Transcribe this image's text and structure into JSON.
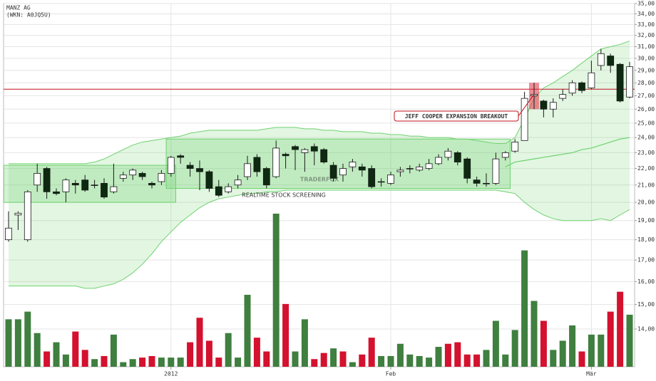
{
  "chart_data": {
    "type": "candlestick",
    "title": "MANZ AG",
    "subtitle": "(WKN: A0JQ5U)",
    "watermark": {
      "title": "TRADERFOX",
      "subtitle": "REALTIME STOCK SCREENING"
    },
    "log_scale": true,
    "grid": true,
    "categories": [
      null,
      null,
      null,
      null,
      null,
      null,
      null,
      null,
      null,
      null,
      null,
      null,
      null,
      null,
      null,
      null,
      null,
      "2012",
      null,
      null,
      null,
      null,
      null,
      null,
      null,
      null,
      null,
      null,
      null,
      null,
      null,
      null,
      null,
      null,
      null,
      null,
      null,
      null,
      null,
      null,
      "Feb",
      null,
      null,
      null,
      null,
      null,
      null,
      null,
      null,
      null,
      null,
      null,
      null,
      null,
      null,
      null,
      null,
      null,
      null,
      null,
      null,
      "Mär",
      null,
      null,
      null,
      null
    ],
    "open": [
      18.0,
      19.3,
      18.0,
      21.0,
      22.0,
      20.6,
      20.6,
      21.1,
      21.3,
      21.0,
      21.1,
      20.6,
      21.4,
      21.6,
      21.7,
      21.1,
      21.2,
      21.7,
      22.8,
      22.2,
      22.0,
      21.8,
      20.9,
      20.6,
      21.0,
      21.5,
      22.7,
      22.0,
      21.5,
      22.9,
      23.4,
      23.0,
      23.4,
      23.2,
      22.2,
      21.6,
      22.1,
      22.1,
      22.0,
      21.2,
      21.1,
      21.8,
      22.0,
      21.9,
      22.0,
      22.3,
      22.7,
      23.0,
      22.6,
      21.3,
      21.1,
      21.1,
      22.7,
      23.1,
      23.8,
      27.0,
      26.6,
      26.0,
      26.8,
      27.2,
      28.0,
      27.6,
      29.4,
      30.2,
      29.5,
      26.9
    ],
    "high": [
      19.5,
      19.5,
      20.7,
      22.3,
      22.1,
      20.8,
      21.4,
      21.3,
      21.6,
      21.3,
      21.4,
      22.3,
      21.8,
      22.0,
      21.8,
      21.2,
      21.9,
      22.8,
      22.9,
      22.4,
      22.5,
      21.9,
      21.3,
      21.1,
      21.6,
      22.8,
      22.9,
      22.1,
      23.8,
      23.0,
      23.5,
      23.3,
      23.6,
      23.3,
      22.4,
      22.3,
      22.6,
      22.3,
      22.2,
      21.4,
      21.8,
      22.1,
      22.2,
      22.3,
      22.6,
      22.9,
      23.3,
      23.1,
      22.7,
      21.5,
      21.7,
      23.0,
      23.1,
      23.9,
      27.3,
      28.0,
      26.7,
      26.8,
      27.5,
      28.2,
      28.1,
      29.8,
      30.8,
      30.4,
      29.6,
      29.7
    ],
    "low": [
      17.9,
      18.5,
      17.9,
      20.6,
      20.2,
      20.4,
      20.0,
      20.5,
      20.6,
      20.8,
      20.2,
      20.5,
      21.2,
      21.3,
      21.3,
      20.8,
      21.0,
      21.5,
      22.3,
      21.5,
      20.7,
      20.6,
      20.3,
      20.5,
      20.8,
      21.3,
      21.5,
      20.8,
      21.4,
      22.0,
      21.9,
      21.8,
      22.2,
      22.3,
      21.2,
      21.2,
      21.8,
      21.5,
      20.8,
      20.9,
      21.0,
      21.5,
      21.7,
      21.8,
      21.9,
      22.2,
      22.5,
      22.2,
      21.1,
      20.9,
      20.9,
      21.0,
      22.5,
      23.0,
      23.8,
      26.0,
      25.4,
      25.4,
      26.6,
      27.0,
      27.2,
      27.5,
      29.0,
      28.8,
      26.5,
      26.8
    ],
    "close": [
      18.6,
      19.4,
      20.6,
      21.7,
      20.6,
      20.5,
      21.3,
      21.0,
      20.7,
      21.0,
      20.3,
      20.9,
      21.6,
      21.9,
      21.5,
      21.0,
      21.7,
      22.7,
      22.7,
      22.0,
      21.8,
      20.8,
      20.4,
      20.9,
      21.3,
      22.3,
      21.8,
      21.0,
      23.3,
      22.8,
      23.2,
      23.2,
      23.1,
      22.4,
      21.4,
      22.0,
      22.4,
      21.9,
      20.9,
      21.2,
      21.6,
      21.9,
      22.0,
      22.1,
      22.3,
      22.7,
      23.1,
      22.4,
      21.4,
      21.1,
      21.1,
      22.6,
      23.0,
      23.7,
      26.8,
      27.1,
      26.0,
      26.5,
      27.1,
      28.0,
      27.4,
      28.8,
      30.4,
      29.4,
      26.6,
      29.3
    ],
    "up_fill": "#ffffff",
    "down_fill": "#0d2a10",
    "candle_stroke": "#1a1a1a",
    "upper_band": [
      22.3,
      22.3,
      22.3,
      22.3,
      22.3,
      22.3,
      22.3,
      22.3,
      22.3,
      22.4,
      22.6,
      22.9,
      23.2,
      23.5,
      23.7,
      23.8,
      23.9,
      24.0,
      24.1,
      24.3,
      24.4,
      24.5,
      24.5,
      24.5,
      24.5,
      24.5,
      24.5,
      24.6,
      24.7,
      24.7,
      24.7,
      24.6,
      24.6,
      24.5,
      24.5,
      24.4,
      24.4,
      24.4,
      24.3,
      24.3,
      24.2,
      24.2,
      24.1,
      24.1,
      24.0,
      24.0,
      24.0,
      23.9,
      23.9,
      23.8,
      23.7,
      23.6,
      23.6,
      24.0,
      25.3,
      26.8,
      27.6,
      28.0,
      28.5,
      29.0,
      29.6,
      30.2,
      30.8,
      31.0,
      31.2,
      31.5
    ],
    "lower_band": [
      15.8,
      15.8,
      15.8,
      15.8,
      15.8,
      15.8,
      15.8,
      15.8,
      15.7,
      15.7,
      15.8,
      15.9,
      16.1,
      16.4,
      16.8,
      17.3,
      17.9,
      18.4,
      18.9,
      19.3,
      19.7,
      20.0,
      20.2,
      20.3,
      20.4,
      20.5,
      20.5,
      20.6,
      20.6,
      20.7,
      20.7,
      20.7,
      20.7,
      20.7,
      20.7,
      20.7,
      20.7,
      20.7,
      20.7,
      20.7,
      20.7,
      20.7,
      20.7,
      20.7,
      20.7,
      20.7,
      20.7,
      20.7,
      20.7,
      20.7,
      20.7,
      20.7,
      20.6,
      20.5,
      20.0,
      19.6,
      19.3,
      19.1,
      19.0,
      19.0,
      19.0,
      19.0,
      19.1,
      19.0,
      19.3,
      19.6
    ],
    "middle_band": [
      null,
      null,
      null,
      null,
      null,
      null,
      null,
      null,
      null,
      null,
      null,
      null,
      null,
      null,
      null,
      null,
      null,
      null,
      null,
      null,
      null,
      null,
      null,
      null,
      null,
      null,
      null,
      null,
      null,
      null,
      null,
      null,
      null,
      null,
      null,
      null,
      null,
      null,
      null,
      null,
      null,
      null,
      null,
      null,
      null,
      null,
      null,
      null,
      null,
      null,
      null,
      null,
      22.1,
      22.4,
      22.5,
      22.6,
      22.7,
      22.8,
      22.9,
      23.0,
      23.2,
      23.3,
      23.5,
      23.7,
      23.9,
      24.0
    ],
    "band_color": "#6fd26f",
    "channels": [
      {
        "start": 0,
        "end": 17,
        "low": 20.0,
        "high": 22.2
      },
      {
        "start": 17,
        "end": 52,
        "low": 20.8,
        "high": 23.9
      }
    ],
    "hline": {
      "value": 27.5,
      "color": "#c0101a"
    },
    "annotation": {
      "text": "JEFF COOPER EXPANSION BREAKOUT",
      "index": 55,
      "color": "#e03040"
    },
    "volume": {
      "values": [
        31,
        31,
        36,
        22,
        10,
        16,
        8,
        23,
        11,
        5,
        7,
        21,
        3,
        5,
        6,
        7,
        6,
        6,
        6,
        16,
        32,
        17,
        6,
        22,
        6,
        47,
        19,
        10,
        100,
        41,
        10,
        31,
        5,
        9,
        12,
        10,
        3,
        8,
        19,
        7,
        7,
        15,
        8,
        7,
        6,
        13,
        15,
        16,
        8,
        8,
        11,
        30,
        8,
        24,
        76,
        43,
        30,
        11,
        17,
        27,
        10,
        21,
        21,
        36,
        49,
        34
      ],
      "colors": [
        "#3f7f3f",
        "#3f7f3f",
        "#3f7f3f",
        "#3f7f3f",
        "#d4112e",
        "#3f7f3f",
        "#3f7f3f",
        "#d4112e",
        "#d4112e",
        "#3f7f3f",
        "#d4112e",
        "#3f7f3f",
        "#3f7f3f",
        "#3f7f3f",
        "#d4112e",
        "#d4112e",
        "#3f7f3f",
        "#3f7f3f",
        "#3f7f3f",
        "#d4112e",
        "#d4112e",
        "#d4112e",
        "#d4112e",
        "#3f7f3f",
        "#3f7f3f",
        "#3f7f3f",
        "#d4112e",
        "#d4112e",
        "#3f7f3f",
        "#d4112e",
        "#3f7f3f",
        "#3f7f3f",
        "#d4112e",
        "#d4112e",
        "#3f7f3f",
        "#d4112e",
        "#3f7f3f",
        "#d4112e",
        "#d4112e",
        "#3f7f3f",
        "#3f7f3f",
        "#3f7f3f",
        "#3f7f3f",
        "#3f7f3f",
        "#3f7f3f",
        "#3f7f3f",
        "#d4112e",
        "#d4112e",
        "#d4112e",
        "#d4112e",
        "#3f7f3f",
        "#3f7f3f",
        "#3f7f3f",
        "#3f7f3f",
        "#3f7f3f",
        "#3f7f3f",
        "#d4112e",
        "#3f7f3f",
        "#3f7f3f",
        "#3f7f3f",
        "#d4112e",
        "#3f7f3f",
        "#3f7f3f",
        "#d4112e",
        "#d4112e",
        "#3f7f3f"
      ],
      "y2lim": [
        0,
        100
      ]
    },
    "ylim": [
      14,
      35
    ],
    "yticks": [
      {
        "value": 14,
        "label": "14,00"
      },
      {
        "value": 15,
        "label": "15,00"
      },
      {
        "value": 16,
        "label": "16,00"
      },
      {
        "value": 17,
        "label": "17,00"
      },
      {
        "value": 18,
        "label": "18,00"
      },
      {
        "value": 19,
        "label": "19,00"
      },
      {
        "value": 20,
        "label": "20,00"
      },
      {
        "value": 21,
        "label": "21,00"
      },
      {
        "value": 22,
        "label": "22,00"
      },
      {
        "value": 23,
        "label": "23,00"
      },
      {
        "value": 24,
        "label": "24,00"
      },
      {
        "value": 25,
        "label": "25,00"
      },
      {
        "value": 26,
        "label": "26,00"
      },
      {
        "value": 27,
        "label": "27,00"
      },
      {
        "value": 28,
        "label": "28,00"
      },
      {
        "value": 29,
        "label": "29,00"
      },
      {
        "value": 30,
        "label": "30,00"
      },
      {
        "value": 31,
        "label": "31,00"
      },
      {
        "value": 32,
        "label": "32,00"
      },
      {
        "value": 33,
        "label": "33,00"
      },
      {
        "value": 34,
        "label": "34,00"
      },
      {
        "value": 35,
        "label": "35,00"
      }
    ]
  }
}
